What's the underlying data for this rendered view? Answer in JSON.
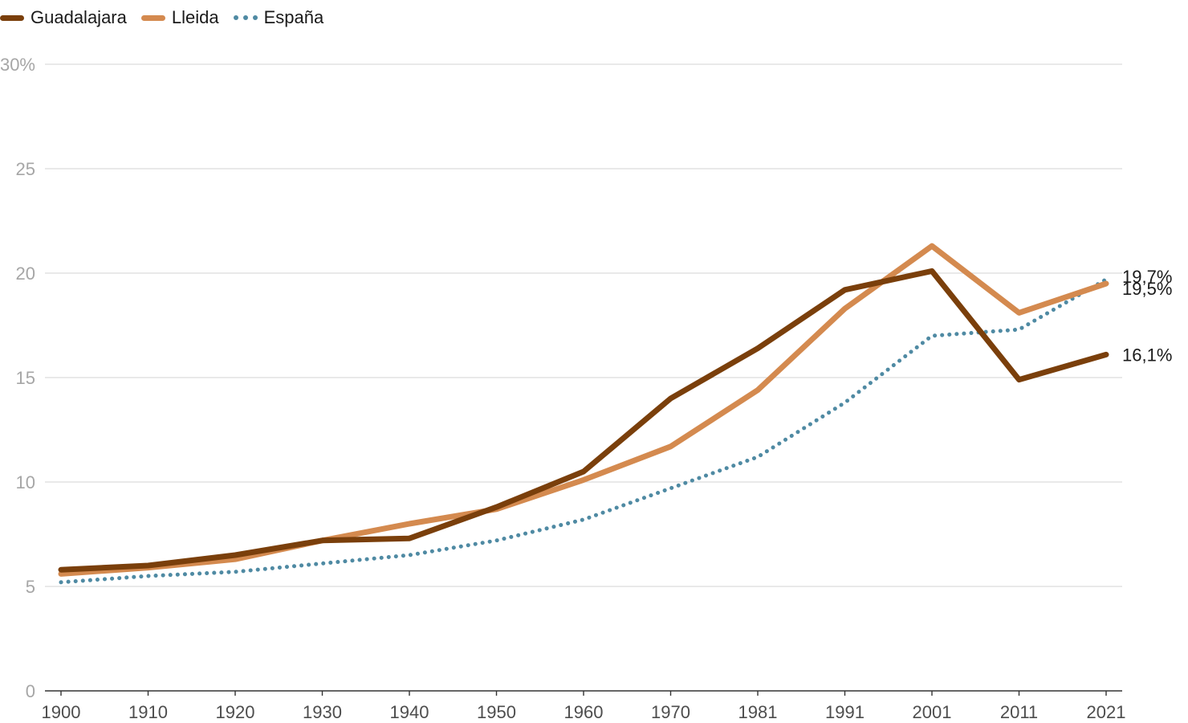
{
  "chart_data": {
    "type": "line",
    "categories": [
      "1900",
      "1910",
      "1920",
      "1930",
      "1940",
      "1950",
      "1960",
      "1970",
      "1981",
      "1991",
      "2001",
      "2011",
      "2021"
    ],
    "ylim": [
      0,
      30
    ],
    "yticks": [
      0,
      5,
      10,
      15,
      20,
      25,
      30
    ],
    "ytick_labels": [
      "0",
      "5",
      "10",
      "15",
      "20",
      "25",
      "30%"
    ],
    "grid": true,
    "legend_position": "top-left",
    "series": [
      {
        "name": "Guadalajara",
        "color": "#7a3f0b",
        "style": "solid",
        "values": [
          5.8,
          6.0,
          6.5,
          7.2,
          7.3,
          8.8,
          10.5,
          14.0,
          16.4,
          19.2,
          20.1,
          14.9,
          16.1
        ],
        "end_label": "16,1%"
      },
      {
        "name": "Lleida",
        "color": "#d48a4f",
        "style": "solid",
        "values": [
          5.6,
          5.9,
          6.3,
          7.2,
          8.0,
          8.7,
          10.1,
          11.7,
          14.4,
          18.3,
          21.3,
          18.1,
          19.5
        ],
        "end_label": "19,5%"
      },
      {
        "name": "España",
        "color": "#4f8aa3",
        "style": "dotted",
        "values": [
          5.2,
          5.5,
          5.7,
          6.1,
          6.5,
          7.2,
          8.2,
          9.7,
          11.2,
          13.8,
          17.0,
          17.3,
          19.7
        ],
        "end_label": "19,7%"
      }
    ]
  }
}
